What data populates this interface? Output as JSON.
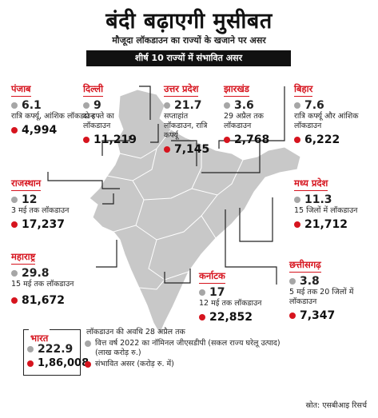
{
  "header": {
    "title": "बंदी बढ़ाएगी मुसीबत",
    "subtitle": "मौजूदा लॉकडाउन का राज्यों के खजाने पर असर",
    "banner": "शीर्ष 10 राज्यों में संभावित असर"
  },
  "states": {
    "punjab": {
      "name": "पंजाब",
      "gdp": "6.1",
      "note": "रात्रि कर्फ्यू, आंशिक लॉकडाउन",
      "impact": "4,994"
    },
    "delhi": {
      "name": "दिल्ली",
      "gdp": "9",
      "note": "दो हफ्ते का लॉकडाउन",
      "impact": "11,219"
    },
    "up": {
      "name": "उत्तर प्रदेश",
      "gdp": "21.7",
      "note": "सप्ताहांत लॉकडाउन, रात्रि कर्फ्यू",
      "impact": "7,145"
    },
    "jharkhand": {
      "name": "झारखंड",
      "gdp": "3.6",
      "note": "29 अप्रैल तक लॉकडाउन",
      "impact": "2,768"
    },
    "bihar": {
      "name": "बिहार",
      "gdp": "7.6",
      "note": "रात्रि कर्फ्यू और आंशिक लॉकडाउन",
      "impact": "6,222"
    },
    "rajasthan": {
      "name": "राजस्थान",
      "gdp": "12",
      "note": "3 मई तक लॉकडाउन",
      "impact": "17,237"
    },
    "mp": {
      "name": "मध्य प्रदेश",
      "gdp": "11.3",
      "note": "15 जिलों में लॉकडाउन",
      "impact": "21,712"
    },
    "maharashtra": {
      "name": "महाराष्ट्र",
      "gdp": "29.8",
      "note": "15 मई तक लॉकडाउन",
      "impact": "81,672"
    },
    "karnataka": {
      "name": "कर्नाटक",
      "gdp": "17",
      "note": "12 मई तक लॉकडाउन",
      "impact": "22,852"
    },
    "chhattisgarh": {
      "name": "छत्तीसगढ़",
      "gdp": "3.8",
      "note": "5 मई तक 20 जिलों में लॉकडाउन",
      "impact": "7,347"
    }
  },
  "legend": {
    "name": "भारत",
    "gdp": "222.9",
    "impact": "1,86,008",
    "line1": "लॉकडाउन की अवधि 28 अप्रैल तक",
    "line2": "वित्त वर्ष 2022 का नॉमिनल जीएसडीपी (सकल राज्य घरेलू उत्पाद) (लाख करोड़ रु.)",
    "line3": "संभावित असर (करोड़ रु. में)"
  },
  "source": "स्रोत: एसबीआइ रिसर्च",
  "colors": {
    "accent": "#d6141e",
    "map": "#c8c8c8",
    "gdp_dot": "#a6a6a6",
    "banner": "#111111"
  }
}
